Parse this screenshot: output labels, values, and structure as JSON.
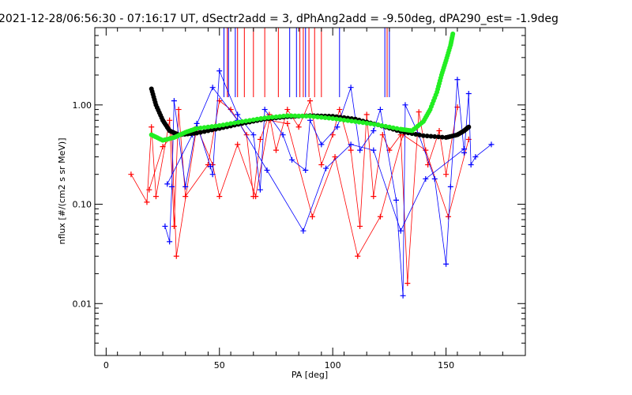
{
  "title": "2021-12-28/06:56:30 - 07:16:17 UT, dSectr2add = 3, dPhAng2add = -9.50deg, dPA290_est=  -1.9deg",
  "chart_data": {
    "type": "scatter",
    "title": "2021-12-28/06:56:30 - 07:16:17 UT, dSectr2add = 3, dPhAng2add = -9.50deg, dPA290_est=  -1.9deg",
    "xlabel": "PA [deg]",
    "ylabel": "nflux [#/(cm2 s sr MeV)]",
    "xlim": [
      -5,
      185
    ],
    "ylim": [
      0.003,
      6.0
    ],
    "yscale": "log",
    "xticks": [
      {
        "v": 0,
        "label": "0"
      },
      {
        "v": 50,
        "label": "50"
      },
      {
        "v": 100,
        "label": "100"
      },
      {
        "v": 150,
        "label": "150"
      }
    ],
    "yticks": [
      {
        "v": 0.01,
        "label": "0.01"
      },
      {
        "v": 0.1,
        "label": "0.10"
      },
      {
        "v": 1.0,
        "label": "1.00"
      }
    ],
    "grid": false,
    "series": [
      {
        "color": "#ff0000",
        "marker": "plus",
        "points": [
          [
            11,
            0.2
          ],
          [
            18,
            0.105
          ],
          [
            20,
            0.6
          ],
          [
            22,
            0.12
          ],
          [
            28,
            0.7
          ],
          [
            30,
            0.06
          ],
          [
            32,
            0.9
          ],
          [
            35,
            0.12
          ],
          [
            45,
            0.25
          ],
          [
            50,
            1.1
          ],
          [
            55,
            0.9
          ],
          [
            62,
            0.5
          ],
          [
            65,
            0.12
          ],
          [
            68,
            0.45
          ],
          [
            72,
            0.8
          ],
          [
            75,
            0.35
          ],
          [
            80,
            0.9
          ],
          [
            85,
            0.6
          ],
          [
            90,
            1.1
          ],
          [
            95,
            0.25
          ],
          [
            100,
            0.5
          ],
          [
            103,
            0.9
          ],
          [
            108,
            0.35
          ],
          [
            112,
            0.06
          ],
          [
            115,
            0.8
          ],
          [
            118,
            0.12
          ],
          [
            122,
            0.5
          ],
          [
            125,
            0.35
          ],
          [
            130,
            0.5
          ],
          [
            133,
            0.016
          ],
          [
            138,
            0.85
          ],
          [
            142,
            0.25
          ],
          [
            147,
            0.55
          ],
          [
            150,
            0.2
          ],
          [
            155,
            0.95
          ]
        ]
      },
      {
        "color": "#ff0000",
        "marker": "plus",
        "points": [
          [
            19,
            0.14
          ],
          [
            25,
            0.38
          ],
          [
            29,
            0.48
          ],
          [
            31,
            0.03
          ],
          [
            40,
            0.6
          ],
          [
            47,
            0.25
          ],
          [
            50,
            0.12
          ],
          [
            58,
            0.4
          ],
          [
            66,
            0.12
          ],
          [
            72,
            0.7
          ],
          [
            80,
            0.65
          ],
          [
            91,
            0.075
          ],
          [
            101,
            0.3
          ],
          [
            111,
            0.03
          ],
          [
            121,
            0.075
          ],
          [
            131,
            0.5
          ],
          [
            141,
            0.35
          ],
          [
            151,
            0.075
          ],
          [
            160,
            0.45
          ]
        ]
      },
      {
        "color": "#0000ff",
        "marker": "plus",
        "points": [
          [
            26,
            0.06
          ],
          [
            28,
            0.042
          ],
          [
            29,
            0.15
          ],
          [
            30,
            1.1
          ],
          [
            35,
            0.15
          ],
          [
            40,
            0.65
          ],
          [
            46,
            0.24
          ],
          [
            47,
            0.2
          ],
          [
            50,
            2.2
          ],
          [
            58,
            0.8
          ],
          [
            65,
            0.5
          ],
          [
            68,
            0.14
          ],
          [
            70,
            0.9
          ],
          [
            78,
            0.5
          ],
          [
            82,
            0.28
          ],
          [
            88,
            0.22
          ],
          [
            90,
            0.7
          ],
          [
            95,
            0.4
          ],
          [
            102,
            0.6
          ],
          [
            108,
            1.5
          ],
          [
            112,
            0.35
          ],
          [
            118,
            0.55
          ],
          [
            121,
            0.9
          ],
          [
            128,
            0.11
          ],
          [
            131,
            0.012
          ],
          [
            132,
            1.0
          ],
          [
            138,
            0.5
          ],
          [
            145,
            0.18
          ],
          [
            150,
            0.025
          ],
          [
            152,
            0.15
          ],
          [
            155,
            1.8
          ],
          [
            158,
            0.33
          ],
          [
            160,
            1.3
          ],
          [
            161,
            0.25
          ],
          [
            163,
            0.3
          ],
          [
            170,
            0.4
          ]
        ]
      },
      {
        "color": "#0000ff",
        "marker": "plus",
        "points": [
          [
            27,
            0.16
          ],
          [
            38,
            0.5
          ],
          [
            47,
            1.5
          ],
          [
            58,
            0.7
          ],
          [
            71,
            0.22
          ],
          [
            87,
            0.054
          ],
          [
            97,
            0.23
          ],
          [
            108,
            0.4
          ],
          [
            118,
            0.35
          ],
          [
            130,
            0.054
          ],
          [
            141,
            0.18
          ],
          [
            158,
            0.36
          ]
        ]
      },
      {
        "color": "#000000",
        "style": "thick-dots",
        "points": [
          [
            20,
            1.45
          ],
          [
            22,
            1.0
          ],
          [
            25,
            0.7
          ],
          [
            28,
            0.55
          ],
          [
            32,
            0.5
          ],
          [
            40,
            0.52
          ],
          [
            50,
            0.58
          ],
          [
            60,
            0.65
          ],
          [
            70,
            0.72
          ],
          [
            80,
            0.76
          ],
          [
            90,
            0.78
          ],
          [
            100,
            0.77
          ],
          [
            110,
            0.72
          ],
          [
            120,
            0.63
          ],
          [
            130,
            0.54
          ],
          [
            140,
            0.49
          ],
          [
            150,
            0.47
          ],
          [
            155,
            0.5
          ],
          [
            158,
            0.55
          ],
          [
            160,
            0.6
          ]
        ]
      },
      {
        "color": "#22ee22",
        "style": "thick-dots",
        "points": [
          [
            20,
            0.5
          ],
          [
            25,
            0.44
          ],
          [
            30,
            0.47
          ],
          [
            35,
            0.53
          ],
          [
            40,
            0.58
          ],
          [
            50,
            0.62
          ],
          [
            60,
            0.68
          ],
          [
            70,
            0.74
          ],
          [
            80,
            0.78
          ],
          [
            90,
            0.77
          ],
          [
            100,
            0.73
          ],
          [
            110,
            0.68
          ],
          [
            120,
            0.63
          ],
          [
            130,
            0.57
          ],
          [
            135,
            0.55
          ],
          [
            140,
            0.68
          ],
          [
            143,
            0.9
          ],
          [
            146,
            1.35
          ],
          [
            148,
            2.0
          ],
          [
            150,
            2.8
          ],
          [
            152,
            4.0
          ],
          [
            153,
            5.2
          ]
        ]
      }
    ],
    "vlines": [
      {
        "x": 52,
        "color": "#0000ff"
      },
      {
        "x": 53.5,
        "color": "#ff0000"
      },
      {
        "x": 54,
        "color": "#0000ff"
      },
      {
        "x": 57,
        "color": "#0000ff"
      },
      {
        "x": 58,
        "color": "#ff0000"
      },
      {
        "x": 61,
        "color": "#ff0000"
      },
      {
        "x": 65,
        "color": "#ff0000"
      },
      {
        "x": 70,
        "color": "#ff0000"
      },
      {
        "x": 76,
        "color": "#ff0000"
      },
      {
        "x": 81,
        "color": "#0000ff"
      },
      {
        "x": 84,
        "color": "#0000ff"
      },
      {
        "x": 85.5,
        "color": "#ff0000"
      },
      {
        "x": 87,
        "color": "#ff0000"
      },
      {
        "x": 88,
        "color": "#0000ff"
      },
      {
        "x": 89.5,
        "color": "#ff0000"
      },
      {
        "x": 92,
        "color": "#ff0000"
      },
      {
        "x": 95,
        "color": "#ff0000"
      },
      {
        "x": 103,
        "color": "#0000ff"
      },
      {
        "x": 123,
        "color": "#0000ff"
      },
      {
        "x": 124,
        "color": "#ff0000"
      },
      {
        "x": 125,
        "color": "#0000ff"
      }
    ]
  }
}
